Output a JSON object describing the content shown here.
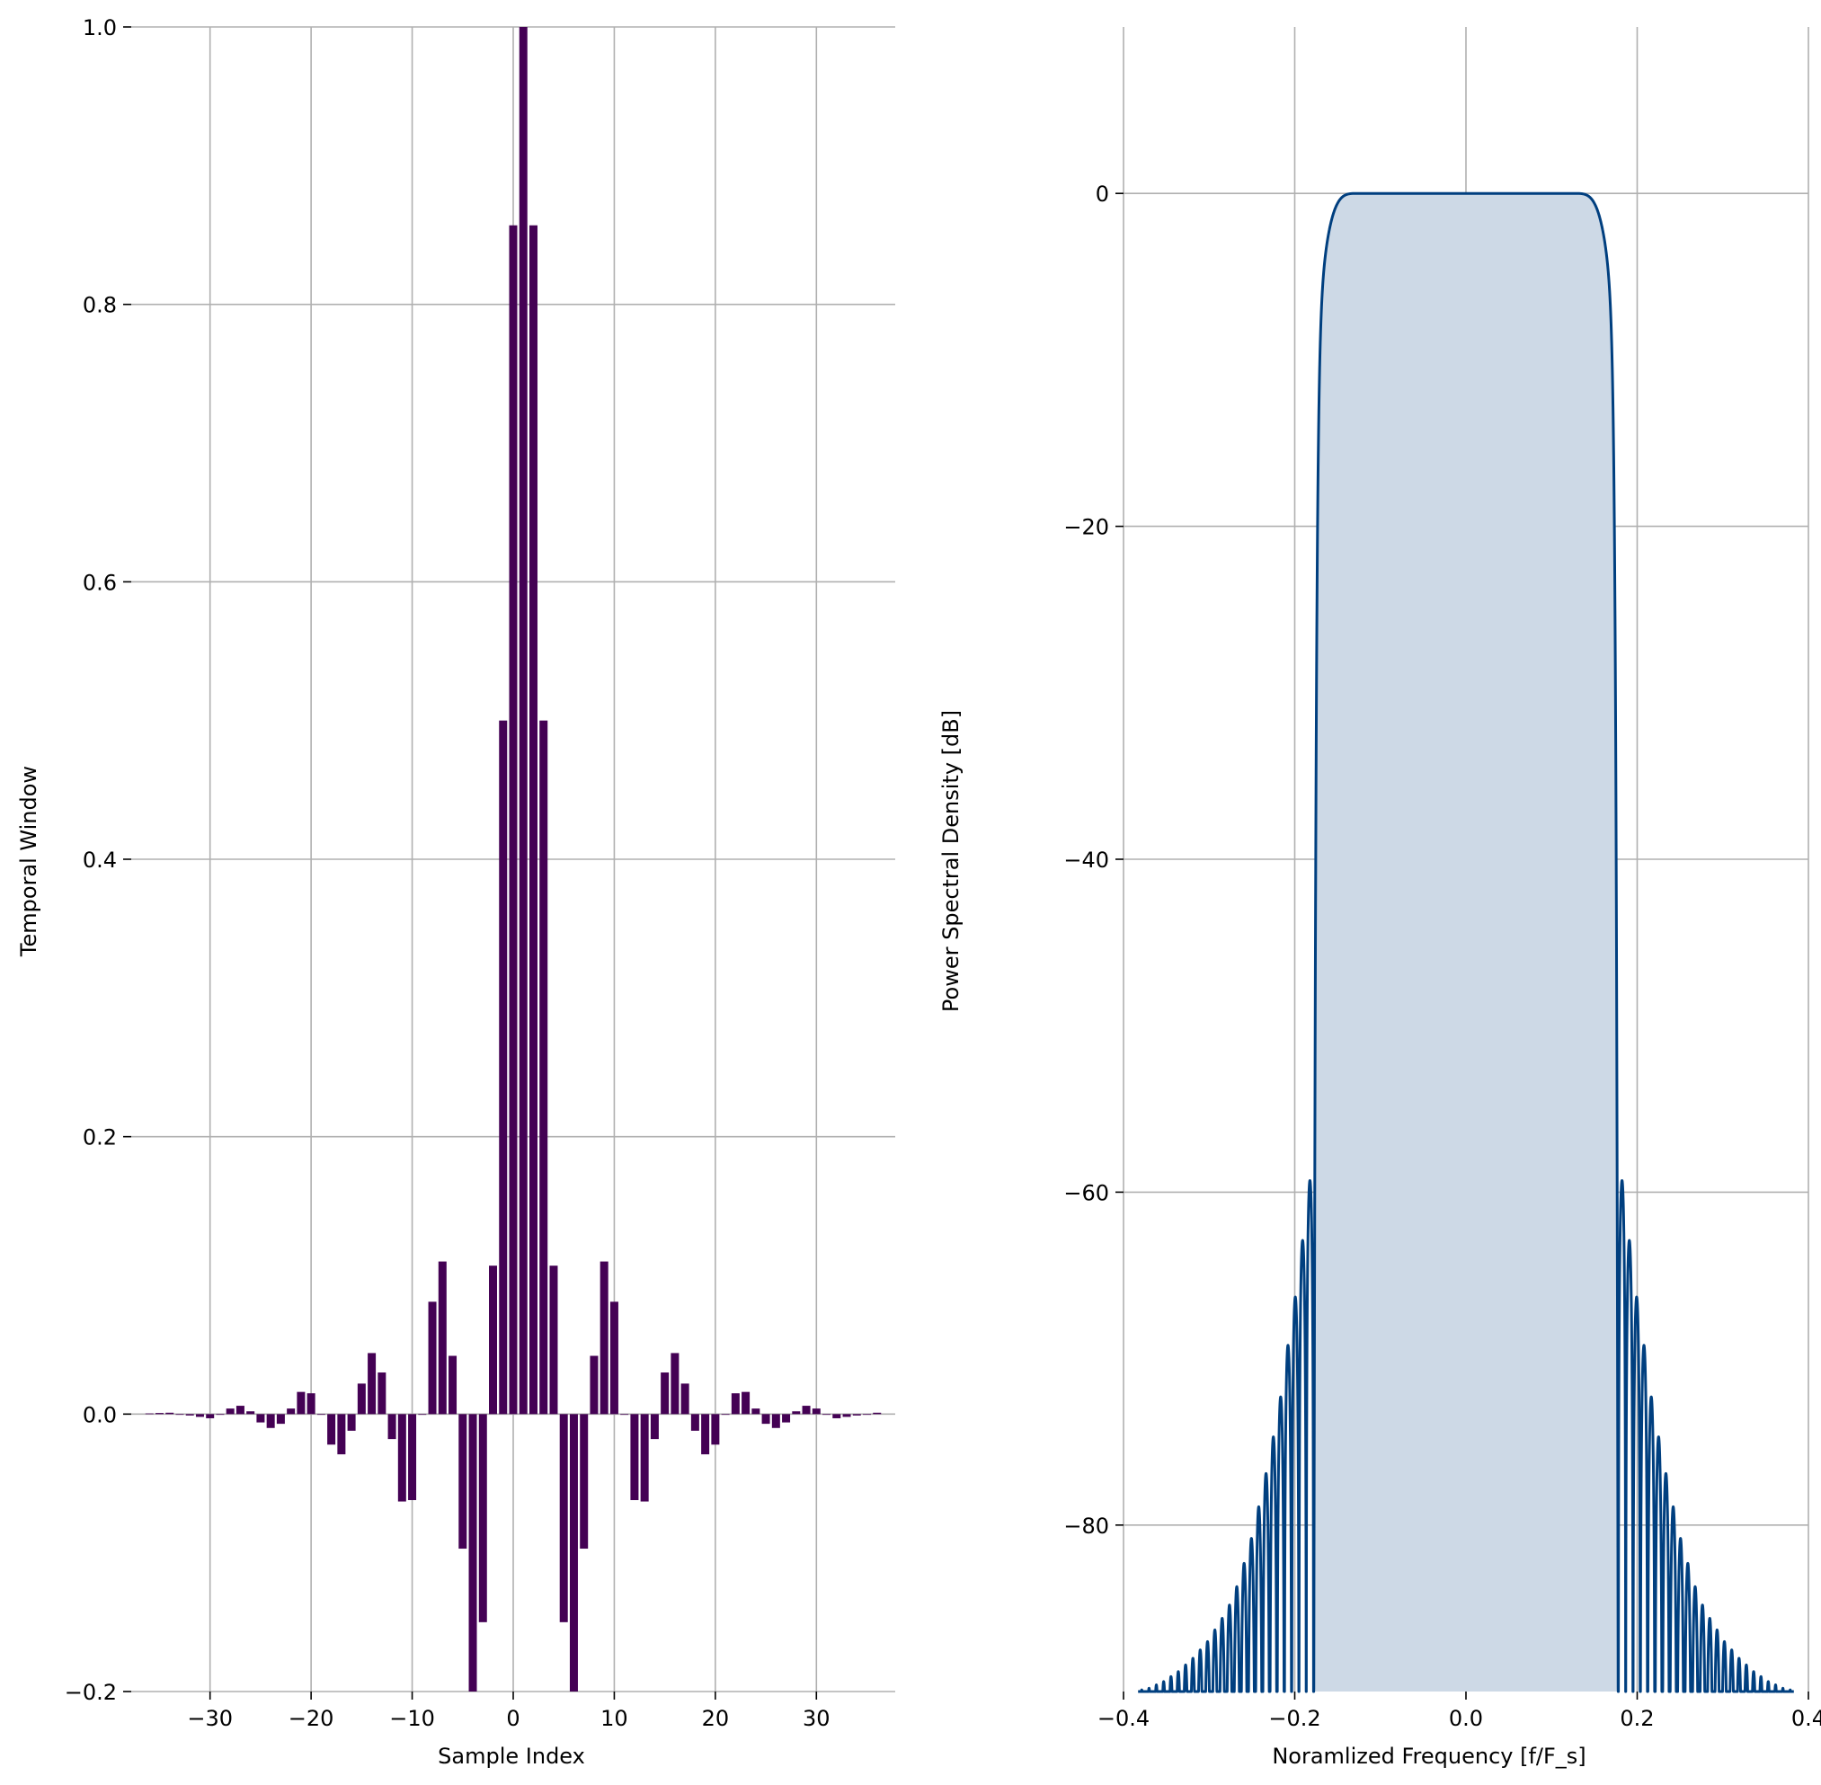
{
  "chart_data": [
    {
      "type": "bar",
      "xlabel": "Sample Index",
      "ylabel": "Temporal Window",
      "xlim": [
        -37.8,
        37.8
      ],
      "ylim": [
        -0.2,
        1.0
      ],
      "grid": true,
      "xticks": [
        -30,
        -20,
        -10,
        0,
        10,
        20,
        30
      ],
      "xtick_labels": [
        "−30",
        "−20",
        "−10",
        "0",
        "10",
        "20",
        "30"
      ],
      "yticks": [
        -0.2,
        0.0,
        0.2,
        0.4,
        0.6,
        0.8,
        1.0
      ],
      "ytick_labels": [
        "−0.2",
        "0.0",
        "0.2",
        "0.4",
        "0.6",
        "0.8",
        "1.0"
      ],
      "color": "#440154",
      "x": [
        -36,
        -35,
        -34,
        -33,
        -32,
        -31,
        -30,
        -29,
        -28,
        -27,
        -26,
        -25,
        -24,
        -23,
        -22,
        -21,
        -20,
        -19,
        -18,
        -17,
        -16,
        -15,
        -14,
        -13,
        -12,
        -11,
        -10,
        -9,
        -8,
        -7,
        -6,
        -5,
        -4,
        -3,
        -2,
        -1,
        0,
        1,
        2,
        3,
        4,
        5,
        6,
        7,
        8,
        9,
        10,
        11,
        12,
        13,
        14,
        15,
        16,
        17,
        18,
        19,
        20,
        21,
        22,
        23,
        24,
        25,
        26,
        27,
        28,
        29,
        30,
        31,
        32,
        33,
        34,
        35,
        36
      ],
      "values": [
        0.0005,
        0.0008,
        0.001,
        0.0,
        -0.001,
        -0.002,
        -0.003,
        0.0,
        0.004,
        0.006,
        0.002,
        -0.006,
        -0.01,
        -0.007,
        0.004,
        0.016,
        0.015,
        0.0,
        -0.022,
        -0.029,
        -0.012,
        0.022,
        0.044,
        0.03,
        -0.018,
        -0.063,
        -0.062,
        0.0,
        0.081,
        0.11,
        0.042,
        -0.097,
        -0.2,
        -0.15,
        0.107,
        0.5,
        0.857,
        1.0,
        0.857,
        0.5,
        0.107,
        -0.15,
        -0.2,
        -0.097,
        0.042,
        0.11,
        0.081,
        0.0,
        -0.062,
        -0.063,
        -0.018,
        0.03,
        0.044,
        0.022,
        -0.012,
        -0.029,
        -0.022,
        0.0,
        0.015,
        0.016,
        0.004,
        -0.007,
        -0.01,
        -0.006,
        0.002,
        0.006,
        0.004,
        0.0,
        -0.003,
        -0.002,
        -0.001,
        0.0,
        0.001
      ]
    },
    {
      "type": "area",
      "xlabel": "Noramlized Frequency [f/F_s]",
      "ylabel": "Power Spectral Density [dB]",
      "xlim": [
        -0.4,
        0.4
      ],
      "ylim": [
        -90,
        10
      ],
      "grid": true,
      "xticks": [
        -0.4,
        -0.2,
        0.0,
        0.2,
        0.4
      ],
      "xtick_labels": [
        "−0.4",
        "−0.2",
        "0.0",
        "0.2",
        "0.4"
      ],
      "yticks": [
        0,
        -20,
        -40,
        -60,
        -80
      ],
      "ytick_labels": [
        "0",
        "−20",
        "−40",
        "−60",
        "−80"
      ],
      "line_color": "#003f7f",
      "fill_color": "#cdd9e6",
      "passband": [
        -0.125,
        0.125
      ],
      "peak_db": 0,
      "main_edge": 0.178,
      "outer_edge": 0.383,
      "sidelobe_count": 24,
      "sidelobe_peaks_db": [
        -59.3,
        -62.9,
        -66.3,
        -69.2,
        -72.3,
        -74.7,
        -76.9,
        -78.9,
        -80.8,
        -82.3,
        -83.7,
        -84.8,
        -85.6,
        -86.3,
        -87.0,
        -87.5,
        -88.0,
        -88.4,
        -88.8,
        -89.1,
        -89.4,
        -89.6,
        -89.8,
        -89.9
      ]
    }
  ]
}
